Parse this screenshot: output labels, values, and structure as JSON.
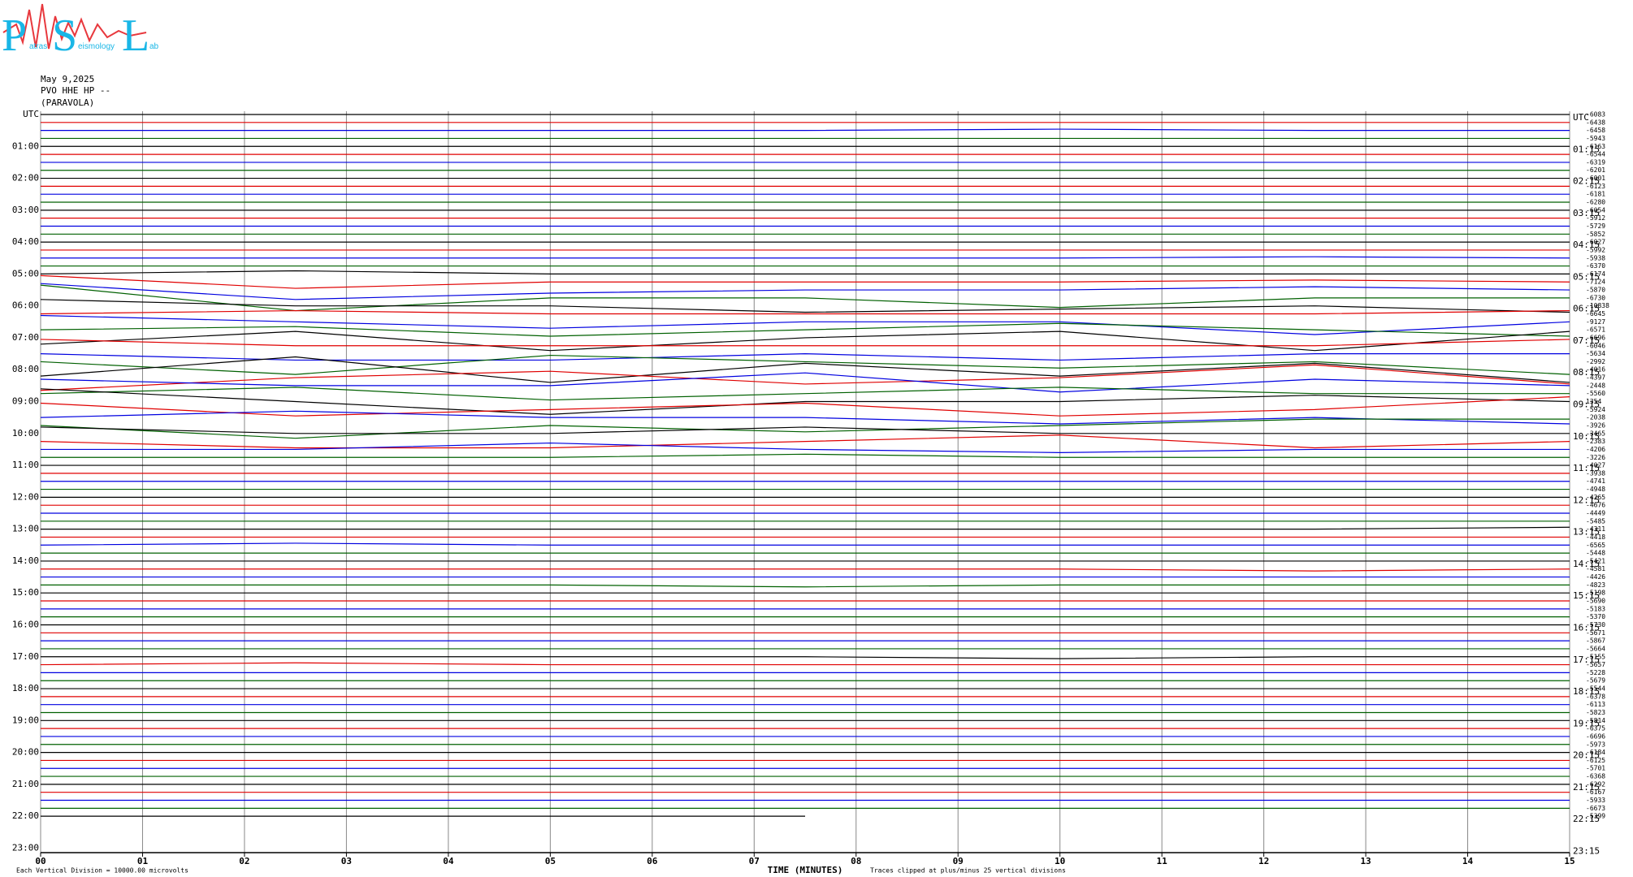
{
  "logo": {
    "letters": [
      "P",
      "S",
      "L"
    ],
    "words": [
      "atras",
      "eismology",
      "ab"
    ]
  },
  "header": {
    "date": "May 9,2025",
    "station": "PVO HHE HP --",
    "name": "(PARAVOLA)"
  },
  "chart_data": {
    "type": "helicorder",
    "left_labels": [
      "UTC",
      "01:00",
      "02:00",
      "03:00",
      "04:00",
      "05:00",
      "06:00",
      "07:00",
      "08:00",
      "09:00",
      "10:00",
      "11:00",
      "12:00",
      "13:00",
      "14:00",
      "15:00",
      "16:00",
      "17:00",
      "18:00",
      "19:00",
      "20:00",
      "21:00",
      "22:00",
      "23:00"
    ],
    "right_labels": [
      "UTC",
      "01:15",
      "02:15",
      "03:15",
      "04:15",
      "05:15",
      "06:15",
      "07:15",
      "08:15",
      "09:15",
      "10:15",
      "11:15",
      "12:15",
      "13:15",
      "14:15",
      "15:15",
      "16:15",
      "17:15",
      "18:15",
      "19:15",
      "20:15",
      "21:15",
      "22:15",
      "23:15"
    ],
    "xlabel": "TIME (MINUTES)",
    "xlim": [
      0,
      15
    ],
    "xticks": [
      {
        "value": 0,
        "label": "00"
      },
      {
        "value": 1,
        "label": "01"
      },
      {
        "value": 2,
        "label": "02"
      },
      {
        "value": 3,
        "label": "03"
      },
      {
        "value": 4,
        "label": "04"
      },
      {
        "value": 5,
        "label": "05"
      },
      {
        "value": 6,
        "label": "06"
      },
      {
        "value": 7,
        "label": "07"
      },
      {
        "value": 8,
        "label": "08"
      },
      {
        "value": 9,
        "label": "09"
      },
      {
        "value": 10,
        "label": "10"
      },
      {
        "value": 11,
        "label": "11"
      },
      {
        "value": 12,
        "label": "12"
      },
      {
        "value": 13,
        "label": "13"
      },
      {
        "value": 14,
        "label": "14"
      },
      {
        "value": 15,
        "label": "15"
      }
    ],
    "note_left": "Each Vertical Division = 10000.00 microvolts",
    "note_right": "Traces clipped at plus/minus 25 vertical divisions",
    "colors": [
      "#000000",
      "#e00000",
      "#0000e0",
      "#006000"
    ],
    "grid": true,
    "x": [
      0,
      2.5,
      5,
      7.5,
      10,
      12.5,
      15
    ],
    "traces": [
      {
        "label": -6083,
        "values": [
          0,
          0,
          0,
          0,
          0,
          0,
          0
        ]
      },
      {
        "label": -6438,
        "values": [
          0,
          0,
          0,
          0,
          0,
          0,
          0
        ]
      },
      {
        "label": -6458,
        "values": [
          0,
          0,
          0,
          0,
          0.2,
          0,
          0
        ]
      },
      {
        "label": -5943,
        "values": [
          0,
          0,
          0,
          0,
          0,
          0,
          0
        ]
      },
      {
        "label": -6163,
        "values": [
          0,
          0,
          0,
          0,
          0,
          0,
          0
        ]
      },
      {
        "label": -6544,
        "values": [
          0,
          0,
          0,
          0,
          0,
          0,
          0
        ]
      },
      {
        "label": -6319,
        "values": [
          0,
          0,
          0,
          0,
          0,
          0,
          0
        ]
      },
      {
        "label": -6201,
        "values": [
          0,
          0,
          0,
          0,
          0,
          0,
          0
        ]
      },
      {
        "label": -6001,
        "values": [
          0,
          0,
          0,
          0,
          0,
          0,
          0
        ]
      },
      {
        "label": -6123,
        "values": [
          0,
          0,
          0,
          0,
          0,
          0,
          0
        ]
      },
      {
        "label": -6181,
        "values": [
          0,
          0,
          0,
          0,
          0,
          0,
          0
        ]
      },
      {
        "label": -6280,
        "values": [
          0,
          0,
          0,
          0,
          0,
          0,
          0
        ]
      },
      {
        "label": -6054,
        "values": [
          0,
          0,
          0,
          0,
          0,
          0,
          0
        ]
      },
      {
        "label": -5912,
        "values": [
          0,
          0,
          0,
          0,
          0,
          0,
          0
        ]
      },
      {
        "label": -5729,
        "values": [
          0,
          0,
          0,
          0,
          0,
          0,
          0
        ]
      },
      {
        "label": -5852,
        "values": [
          0,
          0,
          0,
          0,
          0,
          0,
          0
        ]
      },
      {
        "label": -6027,
        "values": [
          0,
          0,
          0,
          0,
          0,
          0,
          0
        ]
      },
      {
        "label": -5992,
        "values": [
          0,
          0,
          0,
          0,
          0,
          0,
          0
        ]
      },
      {
        "label": -5938,
        "values": [
          0,
          0,
          0,
          0,
          0,
          0.2,
          0
        ]
      },
      {
        "label": -6370,
        "values": [
          0,
          0,
          0,
          0,
          0,
          0,
          0
        ]
      },
      {
        "label": -6174,
        "values": [
          0,
          0.5,
          0,
          0,
          0,
          0,
          0
        ]
      },
      {
        "label": -7124,
        "values": [
          1,
          -1,
          0,
          0,
          0,
          0.3,
          0
        ]
      },
      {
        "label": -5870,
        "values": [
          1,
          -1.5,
          -0.5,
          0,
          0,
          0.5,
          0
        ]
      },
      {
        "label": -6730,
        "values": [
          2,
          -2,
          0,
          0,
          -1.5,
          0,
          0
        ]
      },
      {
        "label": -10838,
        "values": [
          1,
          0,
          0,
          -1,
          -0.5,
          0,
          -1
        ]
      },
      {
        "label": -6645,
        "values": [
          0,
          0.5,
          0,
          0,
          0,
          0,
          0.5
        ]
      },
      {
        "label": -9127,
        "values": [
          1,
          0,
          -1,
          0,
          0,
          -2,
          0
        ]
      },
      {
        "label": -6571,
        "values": [
          0,
          0.5,
          -1,
          0,
          1,
          0,
          -1
        ]
      },
      {
        "label": -6696,
        "values": [
          -1,
          1,
          -2,
          0,
          1,
          -2,
          1
        ]
      },
      {
        "label": -6046,
        "values": [
          1,
          0,
          0,
          0,
          0,
          0,
          1
        ]
      },
      {
        "label": -5634,
        "values": [
          0,
          -1,
          -1,
          0,
          -1,
          0,
          0
        ]
      },
      {
        "label": -2992,
        "values": [
          0,
          -2,
          1,
          0,
          -1,
          0,
          -2
        ]
      },
      {
        "label": -4016,
        "values": [
          -1,
          2,
          -2,
          1,
          -1,
          1,
          -2
        ]
      },
      {
        "label": -4397,
        "values": [
          -2,
          0,
          1,
          -1,
          0,
          2,
          -1
        ]
      },
      {
        "label": -2448,
        "values": [
          1,
          0,
          0,
          2,
          -1,
          1,
          0
        ]
      },
      {
        "label": -5560,
        "values": [
          0,
          1,
          -1,
          0,
          1,
          0,
          0
        ]
      },
      {
        "label": 1354,
        "values": [
          2,
          0,
          -2,
          0,
          0,
          1,
          0
        ]
      },
      {
        "label": -5924,
        "values": [
          1,
          -1,
          0,
          1,
          -1,
          0,
          2
        ]
      },
      {
        "label": -2038,
        "values": [
          0,
          1,
          0,
          0,
          -1,
          0,
          -1
        ]
      },
      {
        "label": -3926,
        "values": [
          0,
          -2,
          0,
          -1,
          0,
          1,
          1
        ]
      },
      {
        "label": -3465,
        "values": [
          1,
          0,
          0,
          1,
          0,
          0,
          0
        ]
      },
      {
        "label": -2383,
        "values": [
          0,
          -1,
          -1,
          0,
          1,
          -1,
          0
        ]
      },
      {
        "label": -4206,
        "values": [
          0,
          0,
          1,
          0,
          -0.5,
          0,
          0
        ]
      },
      {
        "label": -3226,
        "values": [
          0,
          0,
          0,
          0.5,
          0,
          0,
          0
        ]
      },
      {
        "label": -4027,
        "values": [
          0,
          0,
          0,
          0,
          0,
          0,
          0
        ]
      },
      {
        "label": -3938,
        "values": [
          0,
          0,
          0,
          0,
          0,
          0,
          0
        ]
      },
      {
        "label": -4741,
        "values": [
          0,
          0,
          0,
          0,
          0,
          0,
          0
        ]
      },
      {
        "label": -4948,
        "values": [
          0,
          0,
          0,
          0,
          0,
          0,
          0
        ]
      },
      {
        "label": -4265,
        "values": [
          0,
          0,
          0,
          0,
          0,
          0,
          0
        ]
      },
      {
        "label": -4676,
        "values": [
          0,
          0,
          0,
          0,
          0,
          0,
          0
        ]
      },
      {
        "label": -4449,
        "values": [
          0,
          0,
          0,
          0,
          0,
          0,
          0
        ]
      },
      {
        "label": -5485,
        "values": [
          0,
          0,
          0,
          0,
          0,
          0,
          0
        ]
      },
      {
        "label": -4311,
        "values": [
          0,
          0,
          0,
          0,
          0,
          0,
          0.3
        ]
      },
      {
        "label": -4418,
        "values": [
          0,
          0,
          0,
          0,
          0,
          0,
          0
        ]
      },
      {
        "label": -6565,
        "values": [
          0,
          0.3,
          0,
          0,
          0,
          0,
          0
        ]
      },
      {
        "label": -5448,
        "values": [
          0,
          0,
          0,
          0,
          0,
          0,
          0
        ]
      },
      {
        "label": -5421,
        "values": [
          0,
          0,
          0,
          0,
          0,
          0,
          0
        ]
      },
      {
        "label": -4581,
        "values": [
          0,
          0,
          0,
          0,
          0,
          -0.3,
          0
        ]
      },
      {
        "label": -4426,
        "values": [
          0,
          0,
          0,
          0,
          0,
          0,
          0
        ]
      },
      {
        "label": -4823,
        "values": [
          0,
          0,
          0,
          -0.3,
          0,
          0,
          0
        ]
      },
      {
        "label": -5198,
        "values": [
          0,
          0,
          0,
          0,
          0,
          0,
          0
        ]
      },
      {
        "label": -5690,
        "values": [
          0,
          0,
          0,
          0,
          0,
          0,
          0
        ]
      },
      {
        "label": -5183,
        "values": [
          0,
          0,
          0,
          0,
          0,
          0,
          0
        ]
      },
      {
        "label": -5370,
        "values": [
          0,
          0,
          0,
          0,
          0,
          0,
          0
        ]
      },
      {
        "label": -5730,
        "values": [
          0,
          0,
          0,
          0,
          0,
          0,
          0
        ]
      },
      {
        "label": -5671,
        "values": [
          0,
          0,
          0,
          0,
          0,
          0,
          0
        ]
      },
      {
        "label": -5867,
        "values": [
          0,
          0,
          0,
          0,
          0,
          0,
          0
        ]
      },
      {
        "label": -5664,
        "values": [
          0,
          0,
          0,
          0,
          0,
          0,
          0
        ]
      },
      {
        "label": -5155,
        "values": [
          0,
          0,
          0,
          0,
          -0.3,
          0,
          0
        ]
      },
      {
        "label": -5657,
        "values": [
          0,
          0.3,
          0,
          0,
          0,
          0,
          0
        ]
      },
      {
        "label": -5228,
        "values": [
          0,
          0,
          0,
          0,
          0,
          0,
          0
        ]
      },
      {
        "label": -5679,
        "values": [
          0,
          0,
          0,
          0,
          0,
          0,
          0
        ]
      },
      {
        "label": -5544,
        "values": [
          0,
          0,
          0,
          0,
          0,
          0,
          0
        ]
      },
      {
        "label": -6378,
        "values": [
          0,
          0,
          0,
          0,
          0,
          0,
          0
        ]
      },
      {
        "label": -6113,
        "values": [
          0,
          0,
          0,
          0,
          0,
          0,
          0
        ]
      },
      {
        "label": -5823,
        "values": [
          0,
          0,
          0,
          0,
          0,
          0,
          0
        ]
      },
      {
        "label": -5814,
        "values": [
          0,
          0,
          0,
          0,
          0,
          0,
          0
        ]
      },
      {
        "label": -6375,
        "values": [
          0,
          0,
          0,
          0,
          0,
          0,
          0
        ]
      },
      {
        "label": -6696,
        "values": [
          0,
          0,
          0,
          0,
          0,
          0,
          0
        ]
      },
      {
        "label": -5973,
        "values": [
          0,
          0,
          0,
          0,
          0,
          0,
          0
        ]
      },
      {
        "label": -6184,
        "values": [
          0,
          0,
          0,
          0,
          0,
          0,
          0
        ]
      },
      {
        "label": -6125,
        "values": [
          0,
          0,
          0,
          0,
          0,
          0,
          0
        ]
      },
      {
        "label": -5701,
        "values": [
          0,
          0,
          0,
          0,
          0,
          0,
          0
        ]
      },
      {
        "label": -6368,
        "values": [
          0,
          0,
          0,
          0,
          0,
          0,
          0
        ]
      },
      {
        "label": -6292,
        "values": [
          0,
          0,
          0,
          0,
          0,
          0,
          0
        ]
      },
      {
        "label": -6167,
        "values": [
          0,
          0,
          0,
          0,
          0,
          0,
          0
        ]
      },
      {
        "label": -5933,
        "values": [
          0,
          0,
          0,
          0,
          0,
          0,
          0
        ]
      },
      {
        "label": -6673,
        "values": [
          0,
          0,
          0,
          0,
          0,
          0,
          0
        ]
      },
      {
        "label": -5399,
        "values": [
          0,
          0,
          0,
          0,
          null,
          null,
          null
        ]
      }
    ]
  }
}
